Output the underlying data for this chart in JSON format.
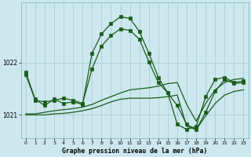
{
  "bg_color": "#cce8ee",
  "grid_color": "#aacdd6",
  "line_color": "#1a5c1a",
  "xlabel": "Graphe pression niveau de la mer (hPa)",
  "xlim": [
    -0.5,
    23.5
  ],
  "ylim": [
    1020.55,
    1023.15
  ],
  "yticks": [
    1021,
    1022
  ],
  "xticks": [
    0,
    1,
    2,
    3,
    4,
    5,
    6,
    7,
    8,
    9,
    10,
    11,
    12,
    13,
    14,
    15,
    16,
    17,
    18,
    19,
    20,
    21,
    22,
    23
  ],
  "line1_x": [
    0,
    1,
    2,
    3,
    4,
    5,
    6,
    7,
    8,
    9,
    10,
    11,
    12,
    13,
    14,
    15,
    16,
    17,
    18,
    19,
    20,
    21,
    22,
    23
  ],
  "line1_y": [
    1021.82,
    1021.3,
    1021.18,
    1021.3,
    1021.22,
    1021.25,
    1021.2,
    1022.18,
    1022.55,
    1022.75,
    1022.88,
    1022.85,
    1022.6,
    1022.18,
    1021.72,
    1021.42,
    1021.18,
    1020.82,
    1020.72,
    1021.05,
    1021.45,
    1021.68,
    1021.6,
    1021.62
  ],
  "line2_x": [
    0,
    1,
    2,
    3,
    4,
    5,
    6,
    7,
    8,
    9,
    10,
    11,
    12,
    13,
    14,
    15,
    16,
    17,
    18,
    19,
    20,
    21,
    22,
    23
  ],
  "line2_y": [
    1021.02,
    1021.02,
    1021.05,
    1021.08,
    1021.1,
    1021.12,
    1021.15,
    1021.2,
    1021.28,
    1021.35,
    1021.42,
    1021.48,
    1021.5,
    1021.52,
    1021.55,
    1021.6,
    1021.62,
    1021.2,
    1020.88,
    1021.22,
    1021.48,
    1021.62,
    1021.68,
    1021.7
  ],
  "line3_x": [
    0,
    1,
    2,
    3,
    4,
    5,
    6,
    7,
    8,
    9,
    10,
    11,
    12,
    13,
    14,
    15,
    16,
    17,
    18,
    19,
    20,
    21,
    22,
    23
  ],
  "line3_y": [
    1021.0,
    1021.0,
    1021.0,
    1021.02,
    1021.03,
    1021.05,
    1021.08,
    1021.12,
    1021.18,
    1021.25,
    1021.3,
    1021.32,
    1021.32,
    1021.32,
    1021.33,
    1021.35,
    1021.38,
    1020.78,
    1020.72,
    1020.98,
    1021.22,
    1021.38,
    1021.45,
    1021.48
  ],
  "line4_x": [
    0,
    1,
    2,
    3,
    4,
    5,
    6,
    7,
    8,
    9,
    10,
    11,
    12,
    13,
    14,
    15,
    16,
    17,
    18,
    19,
    20,
    21,
    22,
    23
  ],
  "line4_y": [
    1021.78,
    1021.28,
    1021.25,
    1021.28,
    1021.32,
    1021.28,
    1021.22,
    1021.88,
    1022.32,
    1022.52,
    1022.65,
    1022.62,
    1022.45,
    1022.02,
    1021.62,
    1021.42,
    1020.82,
    1020.72,
    1020.78,
    1021.35,
    1021.68,
    1021.72,
    1021.62,
    1021.65
  ]
}
